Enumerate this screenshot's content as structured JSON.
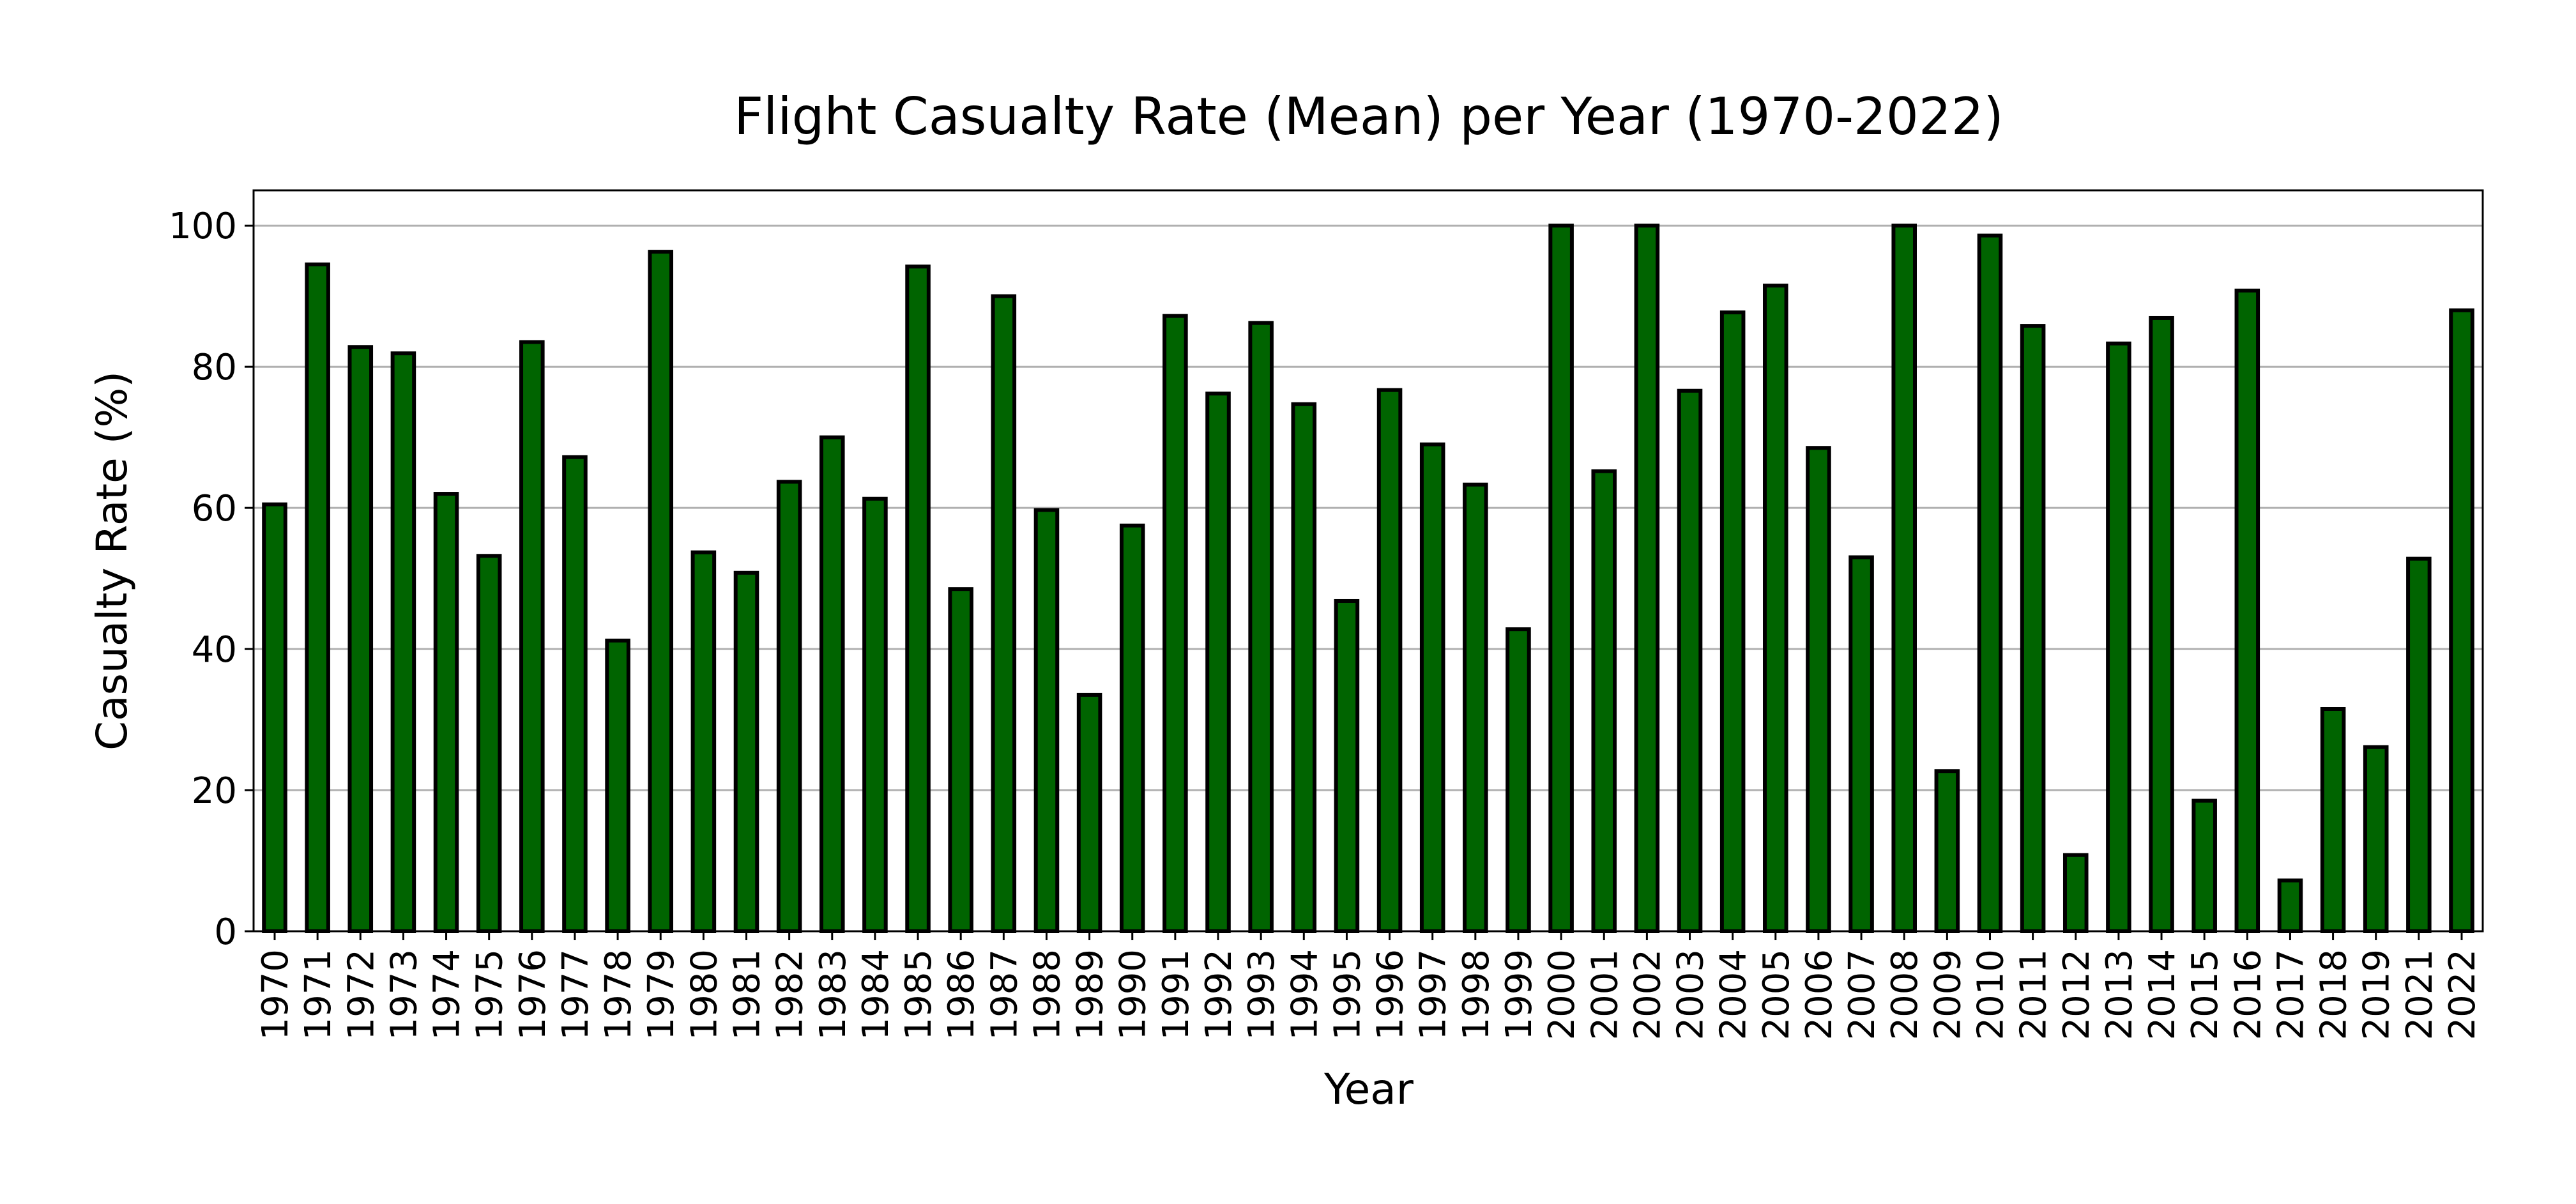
{
  "chart_data": {
    "type": "bar",
    "title": "Flight Casualty Rate (Mean) per Year (1970-2022)",
    "xlabel": "Year",
    "ylabel": "Casualty Rate (%)",
    "ylim": [
      0,
      105
    ],
    "yticks": [
      0,
      20,
      40,
      60,
      80,
      100
    ],
    "grid": "y",
    "legend": "none",
    "bar_color": "#006400",
    "edge_color": "#000000",
    "categories": [
      "1970",
      "1971",
      "1972",
      "1973",
      "1974",
      "1975",
      "1976",
      "1977",
      "1978",
      "1979",
      "1980",
      "1981",
      "1982",
      "1983",
      "1984",
      "1985",
      "1986",
      "1987",
      "1988",
      "1989",
      "1990",
      "1991",
      "1992",
      "1993",
      "1994",
      "1995",
      "1996",
      "1997",
      "1998",
      "1999",
      "2000",
      "2001",
      "2002",
      "2003",
      "2004",
      "2005",
      "2006",
      "2007",
      "2008",
      "2009",
      "2010",
      "2011",
      "2012",
      "2013",
      "2014",
      "2015",
      "2016",
      "2017",
      "2018",
      "2019",
      "2021",
      "2022"
    ],
    "values": [
      60.5,
      94.5,
      82.8,
      81.9,
      62.0,
      53.2,
      83.5,
      67.2,
      41.2,
      96.3,
      53.7,
      50.8,
      63.7,
      70.0,
      61.3,
      94.2,
      48.5,
      90.0,
      59.7,
      33.5,
      57.5,
      87.2,
      76.2,
      86.2,
      74.7,
      46.8,
      76.7,
      69.0,
      63.3,
      42.8,
      100.0,
      65.2,
      100.0,
      76.6,
      87.7,
      91.5,
      68.5,
      53.0,
      100.0,
      22.7,
      98.6,
      85.8,
      10.8,
      83.3,
      86.9,
      18.5,
      90.8,
      7.2,
      31.5,
      26.1,
      52.8,
      88.0
    ]
  }
}
